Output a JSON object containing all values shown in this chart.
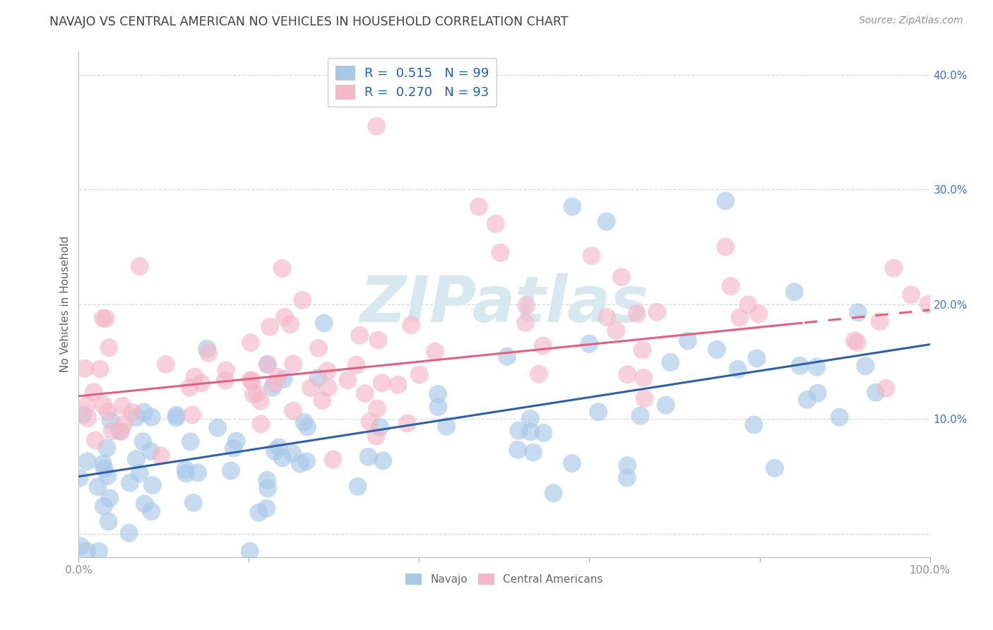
{
  "title": "NAVAJO VS CENTRAL AMERICAN NO VEHICLES IN HOUSEHOLD CORRELATION CHART",
  "source": "Source: ZipAtlas.com",
  "ylabel": "No Vehicles in Household",
  "xlim": [
    0,
    100
  ],
  "ylim": [
    -2,
    42
  ],
  "xticks": [
    0,
    20,
    40,
    60,
    80,
    100
  ],
  "xtick_labels": [
    "0.0%",
    "",
    "",
    "",
    "",
    "100.0%"
  ],
  "yticks": [
    0,
    10,
    20,
    30,
    40
  ],
  "ytick_labels": [
    "",
    "10.0%",
    "20.0%",
    "30.0%",
    "40.0%"
  ],
  "navajo_R": 0.515,
  "navajo_N": 99,
  "central_R": 0.27,
  "central_N": 93,
  "navajo_color": "#a8c8e8",
  "central_color": "#f4b8c8",
  "navajo_line_color": "#3060a0",
  "central_line_color": "#e06080",
  "watermark_color": "#d8e8f0",
  "title_color": "#404040",
  "source_color": "#909090",
  "ylabel_color": "#606060",
  "ytick_color": "#4472c4",
  "xtick_color": "#909090",
  "grid_color": "#d8d8d8",
  "navajo_line_start_y": 5.0,
  "navajo_line_end_y": 16.5,
  "central_line_start_y": 12.0,
  "central_line_end_y": 19.5,
  "central_dash_split_x": 85
}
